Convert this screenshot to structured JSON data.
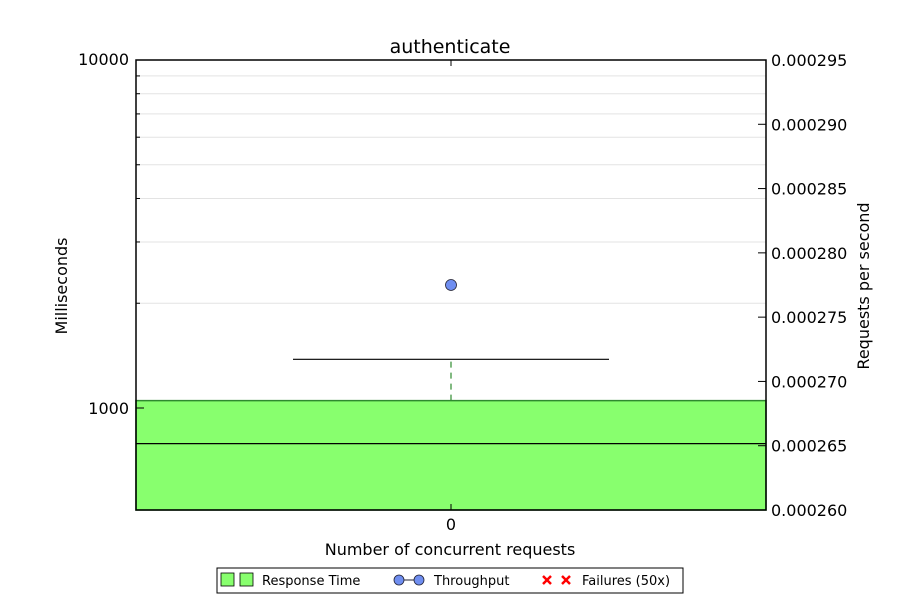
{
  "chart_data": {
    "type": "box",
    "title": "authenticate",
    "xlabel": "Number of concurrent requests",
    "ylabel_left": "Milliseconds",
    "ylabel_right": "Requests per second",
    "x_categories": [
      "0"
    ],
    "y_left_scale": "log",
    "y_left_ticks": [
      "10000",
      "1000"
    ],
    "y_right_ticks": [
      "0.000295",
      "0.000290",
      "0.000285",
      "0.000280",
      "0.000275",
      "0.000270",
      "0.000265",
      "0.000260"
    ],
    "y_right_range": [
      0.00026,
      0.000295
    ],
    "response_time_box": {
      "x": "0",
      "q1": 700,
      "median": 790,
      "q3": 1050,
      "whisker_high": 1380
    },
    "throughput": [
      {
        "x": "0",
        "value": 0.0002775
      }
    ],
    "legend": [
      "Response Time",
      "Throughput",
      "Failures (50x)"
    ],
    "legend_position": "bottom-center",
    "grid": true,
    "colors": {
      "box": "#88ff6e",
      "box_edge": "#2f8a2f",
      "whisker": "#2e8b2e",
      "throughput": "#6f8ef0",
      "failures": "#ff0000"
    }
  }
}
